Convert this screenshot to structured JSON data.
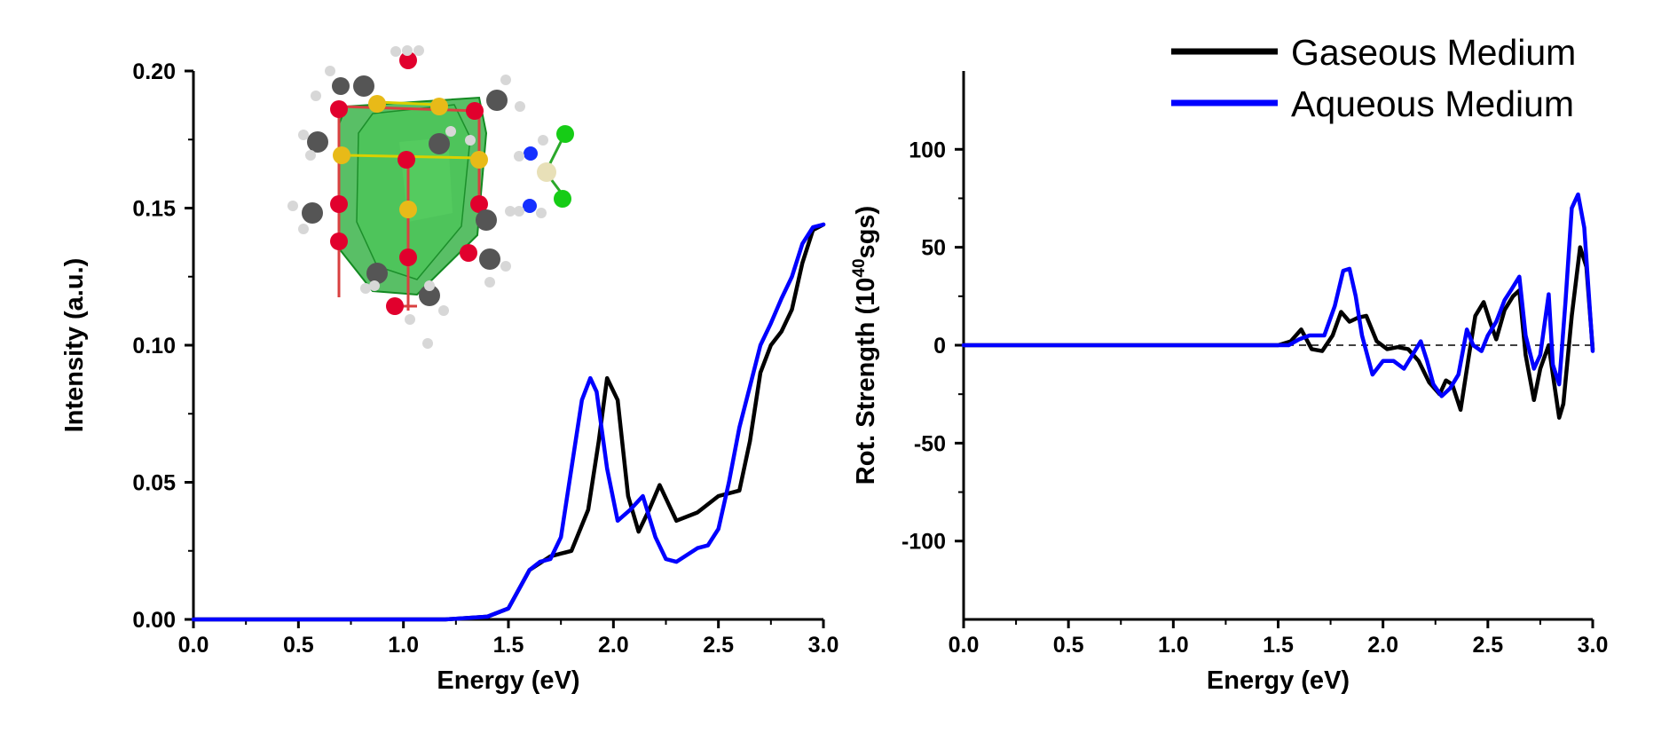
{
  "legend": [
    {
      "label": "Gaseous Medium",
      "color": "#000000"
    },
    {
      "label": "Aqueous Medium",
      "color": "#0000ff"
    }
  ],
  "colors": {
    "gaseous": "#000000",
    "aqueous": "#0000ff"
  },
  "chart_data": [
    {
      "type": "line",
      "xlabel": "Energy (eV)",
      "ylabel": "Intensity (a.u.)",
      "xlim": [
        0.0,
        3.0
      ],
      "ylim": [
        0.0,
        0.2
      ],
      "xticks": [
        "0.0",
        "0.5",
        "1.0",
        "1.5",
        "2.0",
        "2.5",
        "3.0"
      ],
      "yticks": [
        "0.00",
        "0.05",
        "0.10",
        "0.15",
        "0.20"
      ],
      "grid": false,
      "inset": "molecular cluster structure (top-left)",
      "series": [
        {
          "name": "Gaseous Medium",
          "color": "#000000",
          "x": [
            0.0,
            1.2,
            1.4,
            1.5,
            1.6,
            1.7,
            1.8,
            1.88,
            1.93,
            1.97,
            2.02,
            2.07,
            2.12,
            2.17,
            2.22,
            2.3,
            2.4,
            2.5,
            2.6,
            2.65,
            2.7,
            2.75,
            2.8,
            2.85,
            2.9,
            2.95,
            3.0
          ],
          "y": [
            0.0,
            0.0,
            0.001,
            0.004,
            0.018,
            0.023,
            0.025,
            0.04,
            0.065,
            0.088,
            0.08,
            0.045,
            0.032,
            0.04,
            0.049,
            0.036,
            0.039,
            0.045,
            0.047,
            0.065,
            0.09,
            0.1,
            0.105,
            0.113,
            0.13,
            0.142,
            0.144
          ]
        },
        {
          "name": "Aqueous Medium",
          "color": "#0000ff",
          "x": [
            0.0,
            1.2,
            1.4,
            1.5,
            1.6,
            1.65,
            1.7,
            1.75,
            1.8,
            1.85,
            1.89,
            1.92,
            1.97,
            2.02,
            2.08,
            2.14,
            2.2,
            2.25,
            2.3,
            2.4,
            2.45,
            2.5,
            2.55,
            2.6,
            2.65,
            2.7,
            2.75,
            2.8,
            2.85,
            2.9,
            2.95,
            3.0
          ],
          "y": [
            0.0,
            0.0,
            0.001,
            0.004,
            0.018,
            0.021,
            0.022,
            0.03,
            0.055,
            0.08,
            0.088,
            0.083,
            0.055,
            0.036,
            0.04,
            0.045,
            0.03,
            0.022,
            0.021,
            0.026,
            0.027,
            0.033,
            0.05,
            0.07,
            0.085,
            0.1,
            0.108,
            0.117,
            0.125,
            0.137,
            0.143,
            0.144
          ]
        }
      ]
    },
    {
      "type": "line",
      "xlabel": "Energy (eV)",
      "ylabel_main": "Rot. Strength (10",
      "ylabel_sup": "40",
      "ylabel_tail": "sgs)",
      "xlim": [
        0.0,
        3.0
      ],
      "ylim": [
        -140,
        140
      ],
      "xticks": [
        "0.0",
        "0.5",
        "1.0",
        "1.5",
        "2.0",
        "2.5",
        "3.0"
      ],
      "yticks": [
        "100",
        "50",
        "0",
        "-50",
        "-100"
      ],
      "ytick_values": [
        100,
        50,
        0,
        -50,
        -100
      ],
      "zero_line": "dashed",
      "grid": false,
      "legend_position": "top-right",
      "series": [
        {
          "name": "Gaseous Medium",
          "color": "#000000",
          "x": [
            0.0,
            1.2,
            1.5,
            1.56,
            1.61,
            1.66,
            1.71,
            1.76,
            1.8,
            1.84,
            1.88,
            1.92,
            1.97,
            2.02,
            2.07,
            2.12,
            2.17,
            2.22,
            2.27,
            2.3,
            2.33,
            2.37,
            2.41,
            2.44,
            2.48,
            2.51,
            2.54,
            2.58,
            2.62,
            2.65,
            2.68,
            2.72,
            2.75,
            2.79,
            2.81,
            2.84,
            2.86,
            2.9,
            2.94,
            2.97,
            3.0
          ],
          "y": [
            0,
            0,
            0,
            2,
            8,
            -2,
            -3,
            5,
            17,
            12,
            14,
            15,
            2,
            -2,
            -1,
            -2,
            -8,
            -19,
            -25,
            -18,
            -20,
            -33,
            -5,
            15,
            22,
            12,
            3,
            18,
            25,
            28,
            -5,
            -28,
            -12,
            0,
            -15,
            -37,
            -30,
            15,
            50,
            40,
            -2
          ]
        },
        {
          "name": "Aqueous Medium",
          "color": "#0000ff",
          "x": [
            0.0,
            1.2,
            1.4,
            1.5,
            1.55,
            1.6,
            1.65,
            1.72,
            1.77,
            1.81,
            1.84,
            1.87,
            1.9,
            1.95,
            2.0,
            2.05,
            2.1,
            2.14,
            2.18,
            2.21,
            2.24,
            2.28,
            2.32,
            2.36,
            2.4,
            2.43,
            2.47,
            2.5,
            2.54,
            2.58,
            2.61,
            2.65,
            2.68,
            2.72,
            2.75,
            2.79,
            2.81,
            2.84,
            2.87,
            2.9,
            2.93,
            2.96,
            3.0
          ],
          "y": [
            0,
            0,
            0,
            0,
            0,
            3,
            5,
            5,
            20,
            38,
            39,
            25,
            5,
            -15,
            -8,
            -8,
            -12,
            -5,
            2,
            -8,
            -20,
            -26,
            -22,
            -15,
            8,
            0,
            -3,
            5,
            12,
            23,
            28,
            35,
            5,
            -12,
            -5,
            26,
            -10,
            -20,
            22,
            70,
            77,
            60,
            -3
          ]
        }
      ]
    }
  ]
}
